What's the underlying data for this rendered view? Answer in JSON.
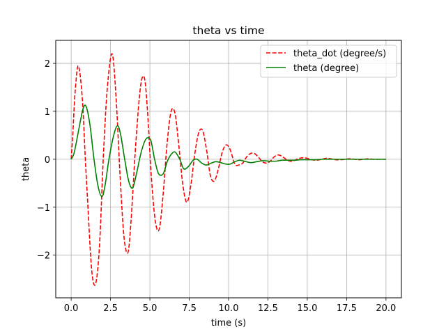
{
  "chart_data": {
    "type": "line",
    "title": "theta vs time",
    "xlabel": "time (s)",
    "ylabel": "theta",
    "xlim": [
      -0.98,
      20.98
    ],
    "ylim": [
      -2.89,
      2.48
    ],
    "grid": true,
    "legend_position": "top-right",
    "x_ticks": [
      0.0,
      2.5,
      5.0,
      7.5,
      10.0,
      12.5,
      15.0,
      17.5,
      20.0
    ],
    "x_tick_labels": [
      "0.0",
      "2.5",
      "5.0",
      "7.5",
      "10.0",
      "12.5",
      "15.0",
      "17.5",
      "20.0"
    ],
    "y_ticks": [
      -2,
      -1,
      0,
      1,
      2
    ],
    "y_tick_labels": [
      "−2",
      "−1",
      "0",
      "1",
      "2"
    ],
    "series": [
      {
        "name": "theta_dot (degree/s)",
        "color": "#ff0000",
        "style": "dashed",
        "x": [
          0.0,
          0.1,
          0.25,
          0.45,
          0.7,
          0.9,
          1.05,
          1.3,
          1.55,
          1.8,
          2.05,
          2.3,
          2.6,
          2.85,
          3.1,
          3.35,
          3.6,
          3.8,
          4.1,
          4.4,
          4.65,
          4.85,
          5.1,
          5.35,
          5.6,
          5.85,
          6.1,
          6.35,
          6.6,
          6.85,
          7.1,
          7.35,
          7.6,
          7.85,
          8.1,
          8.35,
          8.6,
          8.85,
          9.1,
          9.35,
          9.6,
          9.85,
          10.1,
          10.4,
          10.65,
          10.9,
          11.15,
          11.4,
          11.65,
          11.9,
          12.15,
          12.4,
          12.65,
          12.9,
          13.15,
          13.4,
          13.65,
          13.9,
          14.15,
          14.4,
          14.7,
          15.0,
          15.3,
          15.6,
          15.9,
          16.2,
          16.5,
          16.8,
          17.1,
          17.4,
          17.7,
          18.0,
          18.3,
          18.6,
          18.9,
          19.2,
          19.5,
          19.8,
          20.0
        ],
        "y": [
          0.0,
          0.5,
          1.4,
          1.95,
          1.3,
          0.0,
          -0.9,
          -2.3,
          -2.6,
          -1.8,
          0.1,
          1.5,
          2.2,
          1.3,
          -0.3,
          -1.6,
          -1.95,
          -1.3,
          0.3,
          1.5,
          1.7,
          1.0,
          -0.4,
          -1.3,
          -1.45,
          -0.7,
          0.35,
          1.0,
          0.95,
          0.25,
          -0.55,
          -0.9,
          -0.55,
          0.1,
          0.55,
          0.6,
          0.2,
          -0.35,
          -0.45,
          -0.2,
          0.15,
          0.3,
          0.2,
          -0.1,
          -0.12,
          -0.08,
          0.05,
          0.12,
          0.12,
          0.04,
          -0.05,
          -0.08,
          -0.04,
          0.05,
          0.09,
          0.06,
          0.0,
          -0.04,
          -0.03,
          0.01,
          0.03,
          0.02,
          -0.01,
          -0.02,
          0.0,
          0.02,
          0.01,
          -0.01,
          -0.01,
          0.0,
          0.01,
          0.0,
          -0.01,
          0.0,
          0.01,
          0.0,
          0.0,
          0.0,
          0.0
        ]
      },
      {
        "name": "theta (degree)",
        "color": "#008000",
        "style": "solid",
        "x": [
          0.0,
          0.2,
          0.5,
          0.75,
          0.95,
          1.2,
          1.45,
          1.7,
          1.95,
          2.15,
          2.4,
          2.7,
          2.95,
          3.15,
          3.4,
          3.65,
          3.9,
          4.15,
          4.45,
          4.75,
          5.05,
          5.3,
          5.55,
          5.85,
          6.1,
          6.35,
          6.6,
          6.9,
          7.15,
          7.45,
          7.75,
          8.0,
          8.3,
          8.6,
          8.9,
          9.2,
          9.5,
          9.8,
          10.1,
          10.4,
          10.7,
          11.0,
          11.4,
          11.8,
          12.2,
          12.6,
          13.0,
          13.4,
          13.8,
          14.2,
          14.6,
          15.0,
          15.5,
          16.0,
          16.5,
          17.0,
          17.5,
          18.0,
          18.5,
          19.0,
          19.5,
          20.0
        ],
        "y": [
          0.0,
          0.15,
          0.65,
          1.05,
          1.1,
          0.7,
          0.0,
          -0.55,
          -0.78,
          -0.55,
          0.0,
          0.5,
          0.7,
          0.5,
          0.0,
          -0.45,
          -0.6,
          -0.3,
          0.15,
          0.42,
          0.4,
          0.0,
          -0.3,
          -0.3,
          -0.05,
          0.1,
          0.15,
          0.0,
          -0.2,
          -0.15,
          -0.02,
          0.0,
          -0.08,
          -0.12,
          -0.08,
          -0.05,
          -0.07,
          -0.1,
          -0.1,
          -0.05,
          -0.02,
          -0.04,
          -0.07,
          -0.05,
          -0.03,
          -0.04,
          -0.04,
          -0.02,
          -0.02,
          -0.02,
          -0.01,
          -0.01,
          -0.01,
          0.0,
          0.0,
          0.0,
          0.0,
          0.0,
          0.0,
          0.0,
          0.0,
          0.0
        ]
      }
    ]
  }
}
